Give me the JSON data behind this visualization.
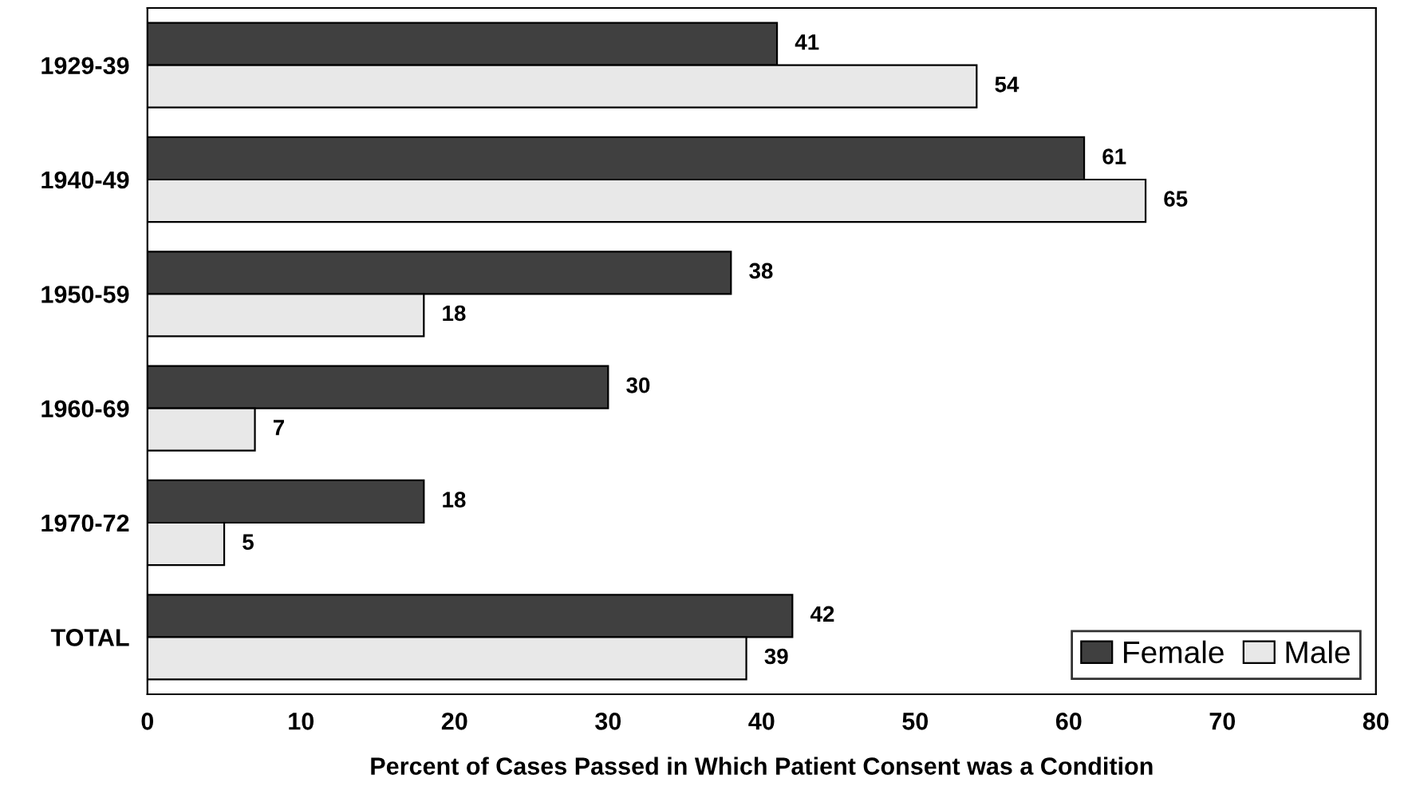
{
  "chart_data": {
    "type": "bar",
    "orientation": "horizontal",
    "xlabel": "Percent of Cases Passed in Which Patient Consent was a Condition",
    "categories": [
      "1929-39",
      "1940-49",
      "1950-59",
      "1960-69",
      "1970-72",
      "TOTAL"
    ],
    "series": [
      {
        "name": "Female",
        "color": "#404040",
        "values": [
          41,
          61,
          38,
          30,
          18,
          42
        ]
      },
      {
        "name": "Male",
        "color": "#e8e8e8",
        "values": [
          54,
          65,
          18,
          7,
          5,
          39
        ]
      }
    ],
    "xlim": [
      0,
      80
    ],
    "xticks": [
      0,
      10,
      20,
      30,
      40,
      50,
      60,
      70,
      80
    ],
    "data_labels": true,
    "legend": "bottom right",
    "grid": false
  }
}
